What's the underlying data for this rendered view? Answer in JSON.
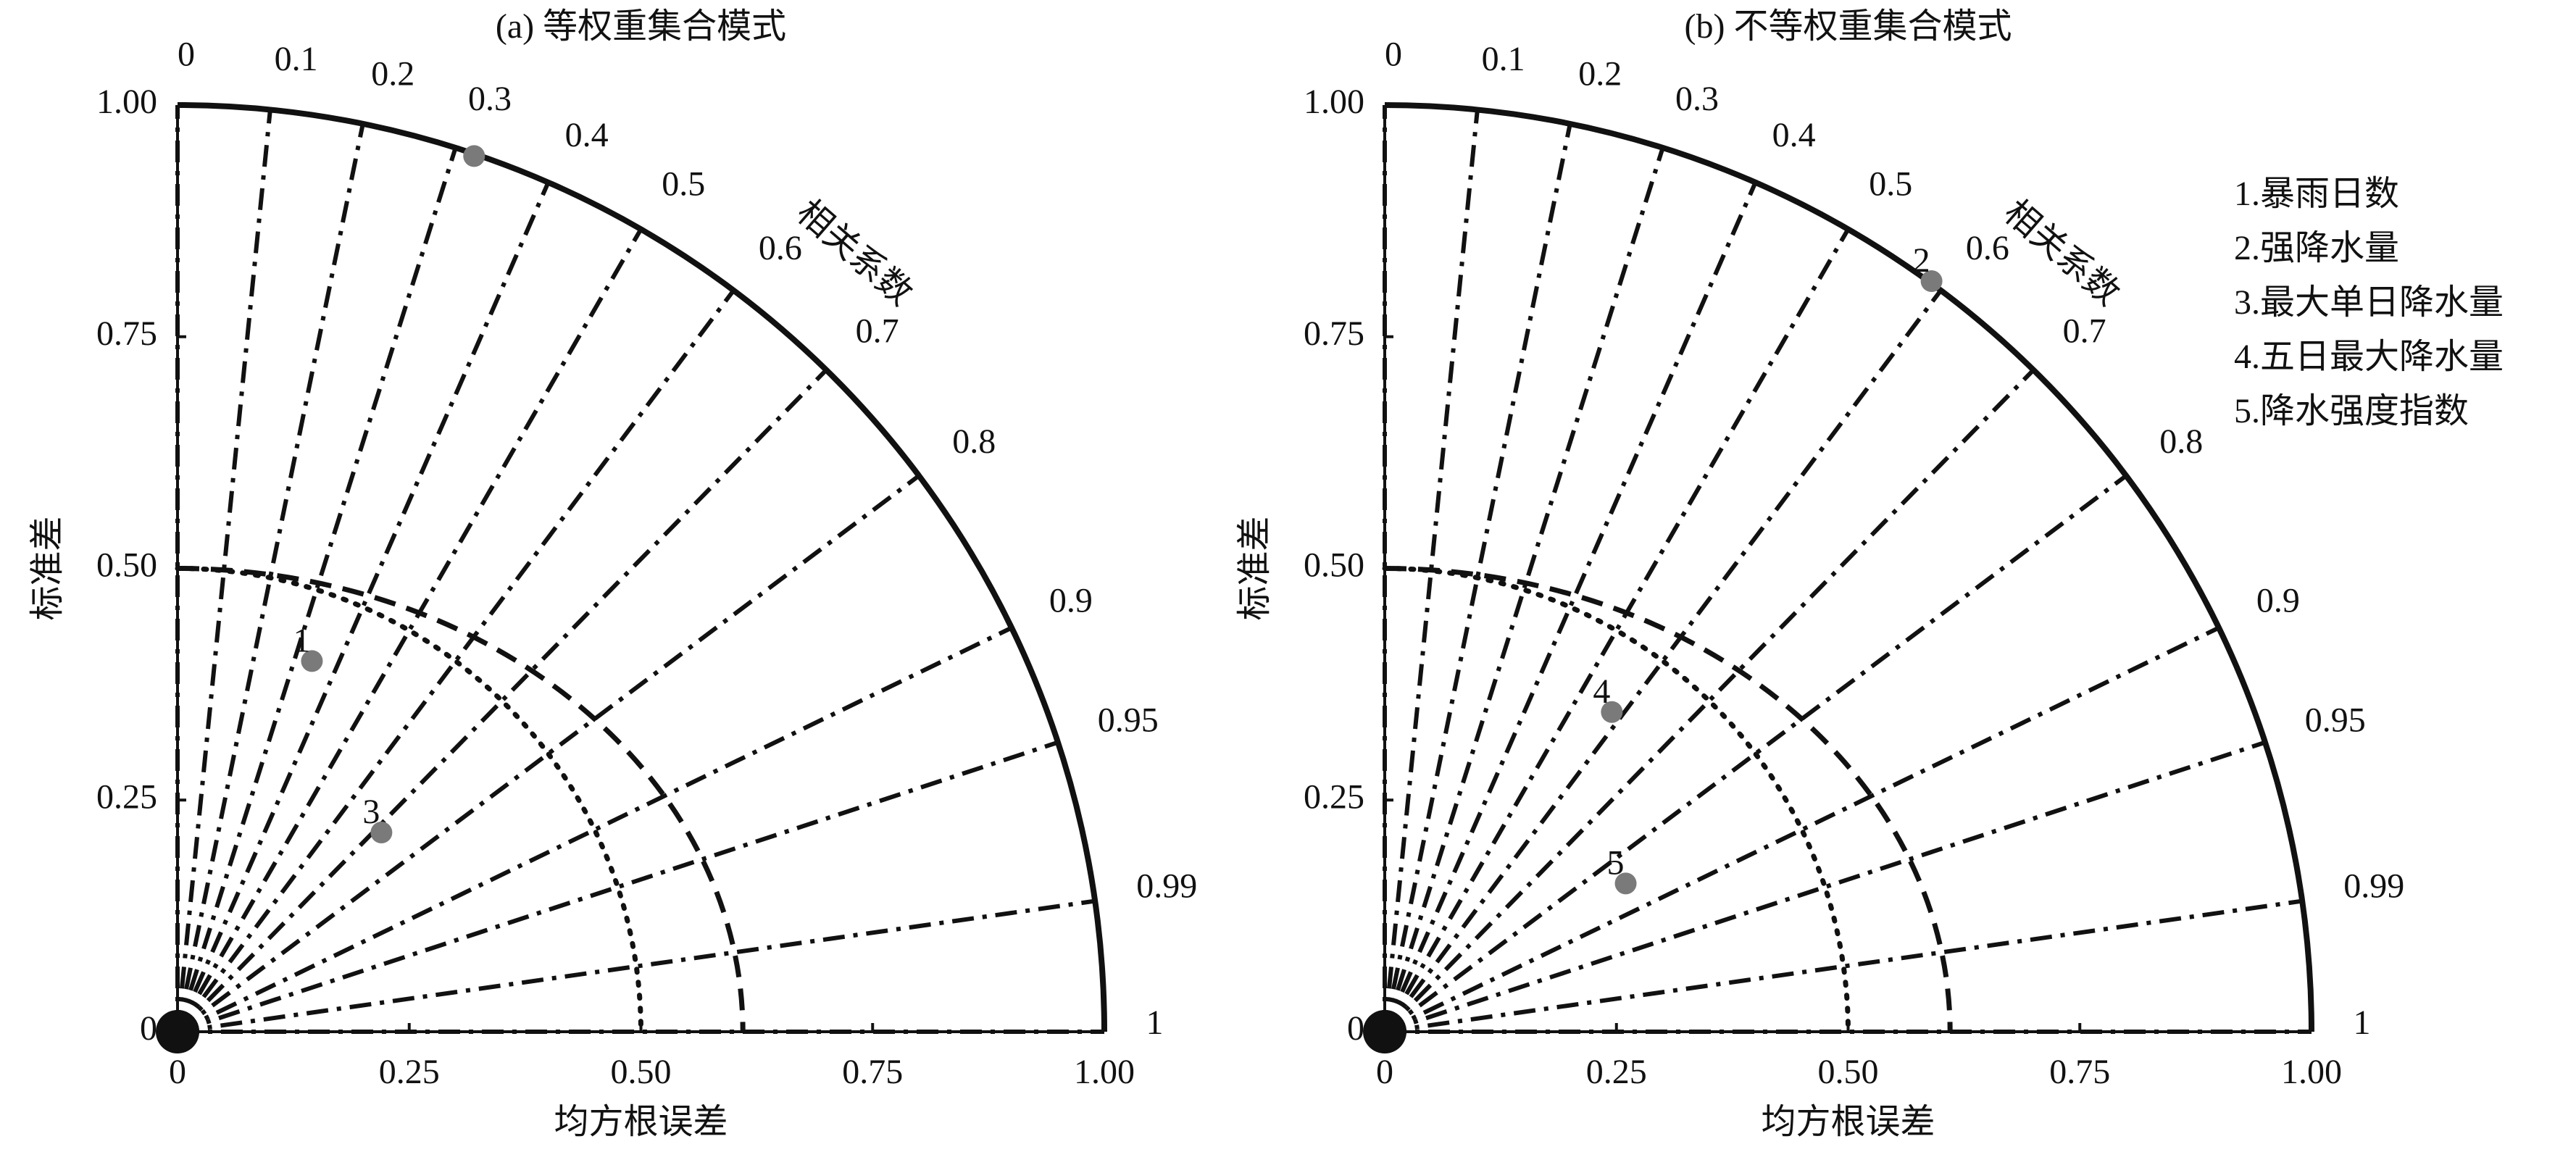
{
  "chart_data": [
    {
      "type": "taylor",
      "title": "(a) 等权重集合模式",
      "xlabel": "均方根误差",
      "ylabel": "标准差",
      "xlim": [
        0,
        1
      ],
      "ylim": [
        0,
        1
      ],
      "xticks": [
        0,
        0.25,
        {
          "value": 0.5,
          "label": "0.50"
        },
        0.75,
        {
          "value": 1,
          "label": "1.00"
        }
      ],
      "yticks": [
        0,
        0.25,
        {
          "value": 0.5,
          "label": "0.50"
        },
        0.75,
        {
          "value": 1,
          "label": "1.00"
        }
      ],
      "corr_label": "相关系数",
      "corr_ticks": [
        0,
        0.1,
        0.2,
        0.3,
        0.4,
        0.5,
        0.6,
        0.7,
        0.8,
        0.9,
        0.95,
        0.99,
        1
      ],
      "arcs": [
        {
          "style": "dashed",
          "rx": 0.61,
          "ry": 0.5
        },
        {
          "style": "dotted",
          "rx": 0.5,
          "ry": 0.5
        }
      ],
      "points": {
        "color": "#7a7a7a",
        "x": [
          0.145,
          0.22,
          0.32
        ],
        "y": [
          0.4,
          0.215,
          0.945
        ],
        "labels": [
          "1",
          "3",
          null
        ]
      }
    },
    {
      "type": "taylor",
      "title": "(b) 不等权重集合模式",
      "xlabel": "均方根误差",
      "ylabel": "标准差",
      "xlim": [
        0,
        1
      ],
      "ylim": [
        0,
        1
      ],
      "xticks": [
        0,
        0.25,
        {
          "value": 0.5,
          "label": "0.50"
        },
        0.75,
        {
          "value": 1,
          "label": "1.00"
        }
      ],
      "yticks": [
        0,
        0.25,
        {
          "value": 0.5,
          "label": "0.50"
        },
        0.75,
        {
          "value": 1,
          "label": "1.00"
        }
      ],
      "corr_label": "相关系数",
      "corr_ticks": [
        0,
        0.1,
        0.2,
        0.3,
        0.4,
        0.5,
        0.6,
        0.7,
        0.8,
        0.9,
        0.95,
        0.99,
        1
      ],
      "arcs": [
        {
          "style": "dashed",
          "rx": 0.61,
          "ry": 0.5
        },
        {
          "style": "dotted",
          "rx": 0.5,
          "ry": 0.5
        }
      ],
      "points": {
        "color": "#7a7a7a",
        "x": [
          0.59,
          0.245,
          0.26
        ],
        "y": [
          0.81,
          0.345,
          0.16
        ],
        "labels": [
          "2",
          "4",
          "5"
        ]
      },
      "legend": [
        "1.暴雨日数",
        "2.强降水量",
        "3.最大单日降水量",
        "4.五日最大降水量",
        "5.降水强度指数"
      ]
    }
  ]
}
